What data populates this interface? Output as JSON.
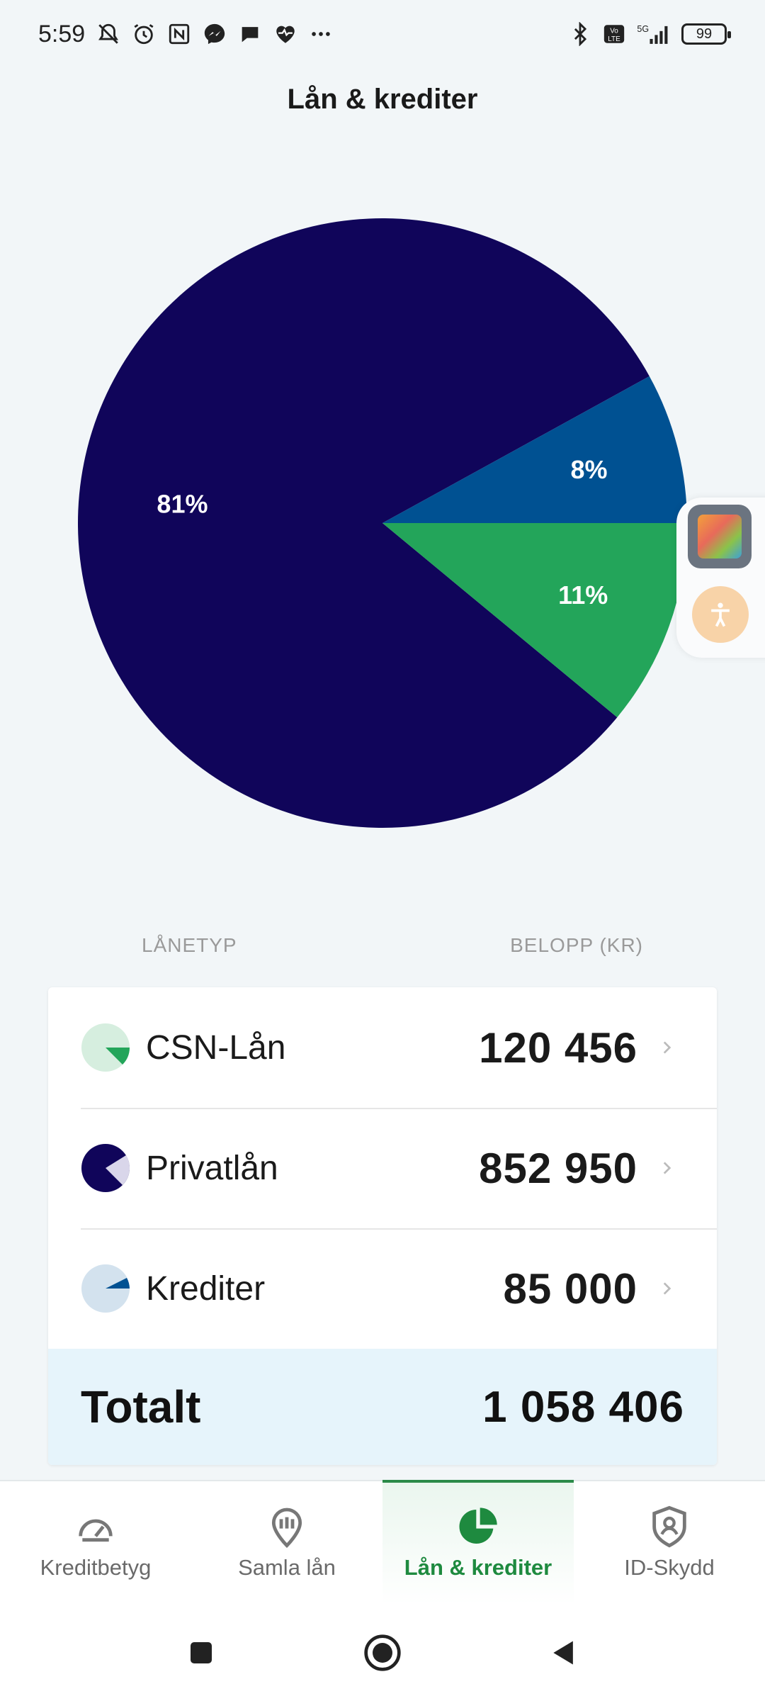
{
  "status_bar": {
    "time": "5:59",
    "battery": "99",
    "icons": [
      "bell-muted-icon",
      "alarm-icon",
      "nfc-icon",
      "messenger-icon",
      "chat-bubble-icon",
      "heart-rate-icon",
      "more-dots-icon",
      "bluetooth-icon",
      "volte-icon",
      "5g-signal-icon",
      "battery-icon"
    ],
    "network": "5G",
    "volte": "Vo LTE"
  },
  "header": {
    "title": "Lån & krediter"
  },
  "chart_data": {
    "type": "pie",
    "slices": [
      {
        "label": "Privatlån",
        "value": 81,
        "display": "81%",
        "color": "#10055a"
      },
      {
        "label": "Krediter",
        "value": 8,
        "display": "8%",
        "color": "#005192"
      },
      {
        "label": "CSN-Lån",
        "value": 11,
        "display": "11%",
        "color": "#23a55a"
      }
    ],
    "legend": "none"
  },
  "table": {
    "col_type": "LÅNETYP",
    "col_amount": "BELOPP (KR)",
    "rows": [
      {
        "label": "CSN-Lån",
        "value": "120 456",
        "icon": "csn-loan-pie-icon"
      },
      {
        "label": "Privatlån",
        "value": "852 950",
        "icon": "private-loan-pie-icon"
      },
      {
        "label": "Krediter",
        "value": "85 000",
        "icon": "credit-pie-icon"
      }
    ],
    "total_label": "Totalt",
    "total_value": "1 058 406"
  },
  "bottom_nav": [
    {
      "label": "Kreditbetyg",
      "icon": "gauge-icon",
      "active": false
    },
    {
      "label": "Samla lån",
      "icon": "pin-bars-icon",
      "active": false
    },
    {
      "label": "Lån & krediter",
      "icon": "pie-chart-icon",
      "active": true
    },
    {
      "label": "ID-Skydd",
      "icon": "shield-user-icon",
      "active": false
    }
  ],
  "colors": {
    "accent_green": "#23a55a",
    "navy": "#10055a",
    "blue": "#005192",
    "active_nav": "#1e8a3f",
    "total_bg": "#e6f4fb"
  }
}
